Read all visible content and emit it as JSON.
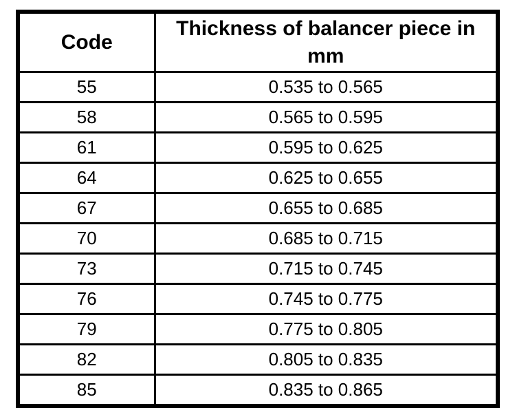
{
  "page": {
    "background_color": "#ffffff",
    "border_color": "#000000"
  },
  "table": {
    "columns": [
      {
        "key": "code",
        "label": "Code"
      },
      {
        "key": "thickness",
        "label": "Thickness of balancer piece in mm"
      }
    ],
    "rows": [
      {
        "code": "55",
        "thickness": "0.535 to 0.565"
      },
      {
        "code": "58",
        "thickness": "0.565 to 0.595"
      },
      {
        "code": "61",
        "thickness": "0.595 to 0.625"
      },
      {
        "code": "64",
        "thickness": "0.625 to 0.655"
      },
      {
        "code": "67",
        "thickness": "0.655 to 0.685"
      },
      {
        "code": "70",
        "thickness": "0.685 to 0.715"
      },
      {
        "code": "73",
        "thickness": "0.715 to 0.745"
      },
      {
        "code": "76",
        "thickness": "0.745 to 0.775"
      },
      {
        "code": "79",
        "thickness": "0.775 to 0.805"
      },
      {
        "code": "82",
        "thickness": "0.805 to 0.835"
      },
      {
        "code": "85",
        "thickness": "0.835 to 0.865"
      }
    ]
  }
}
